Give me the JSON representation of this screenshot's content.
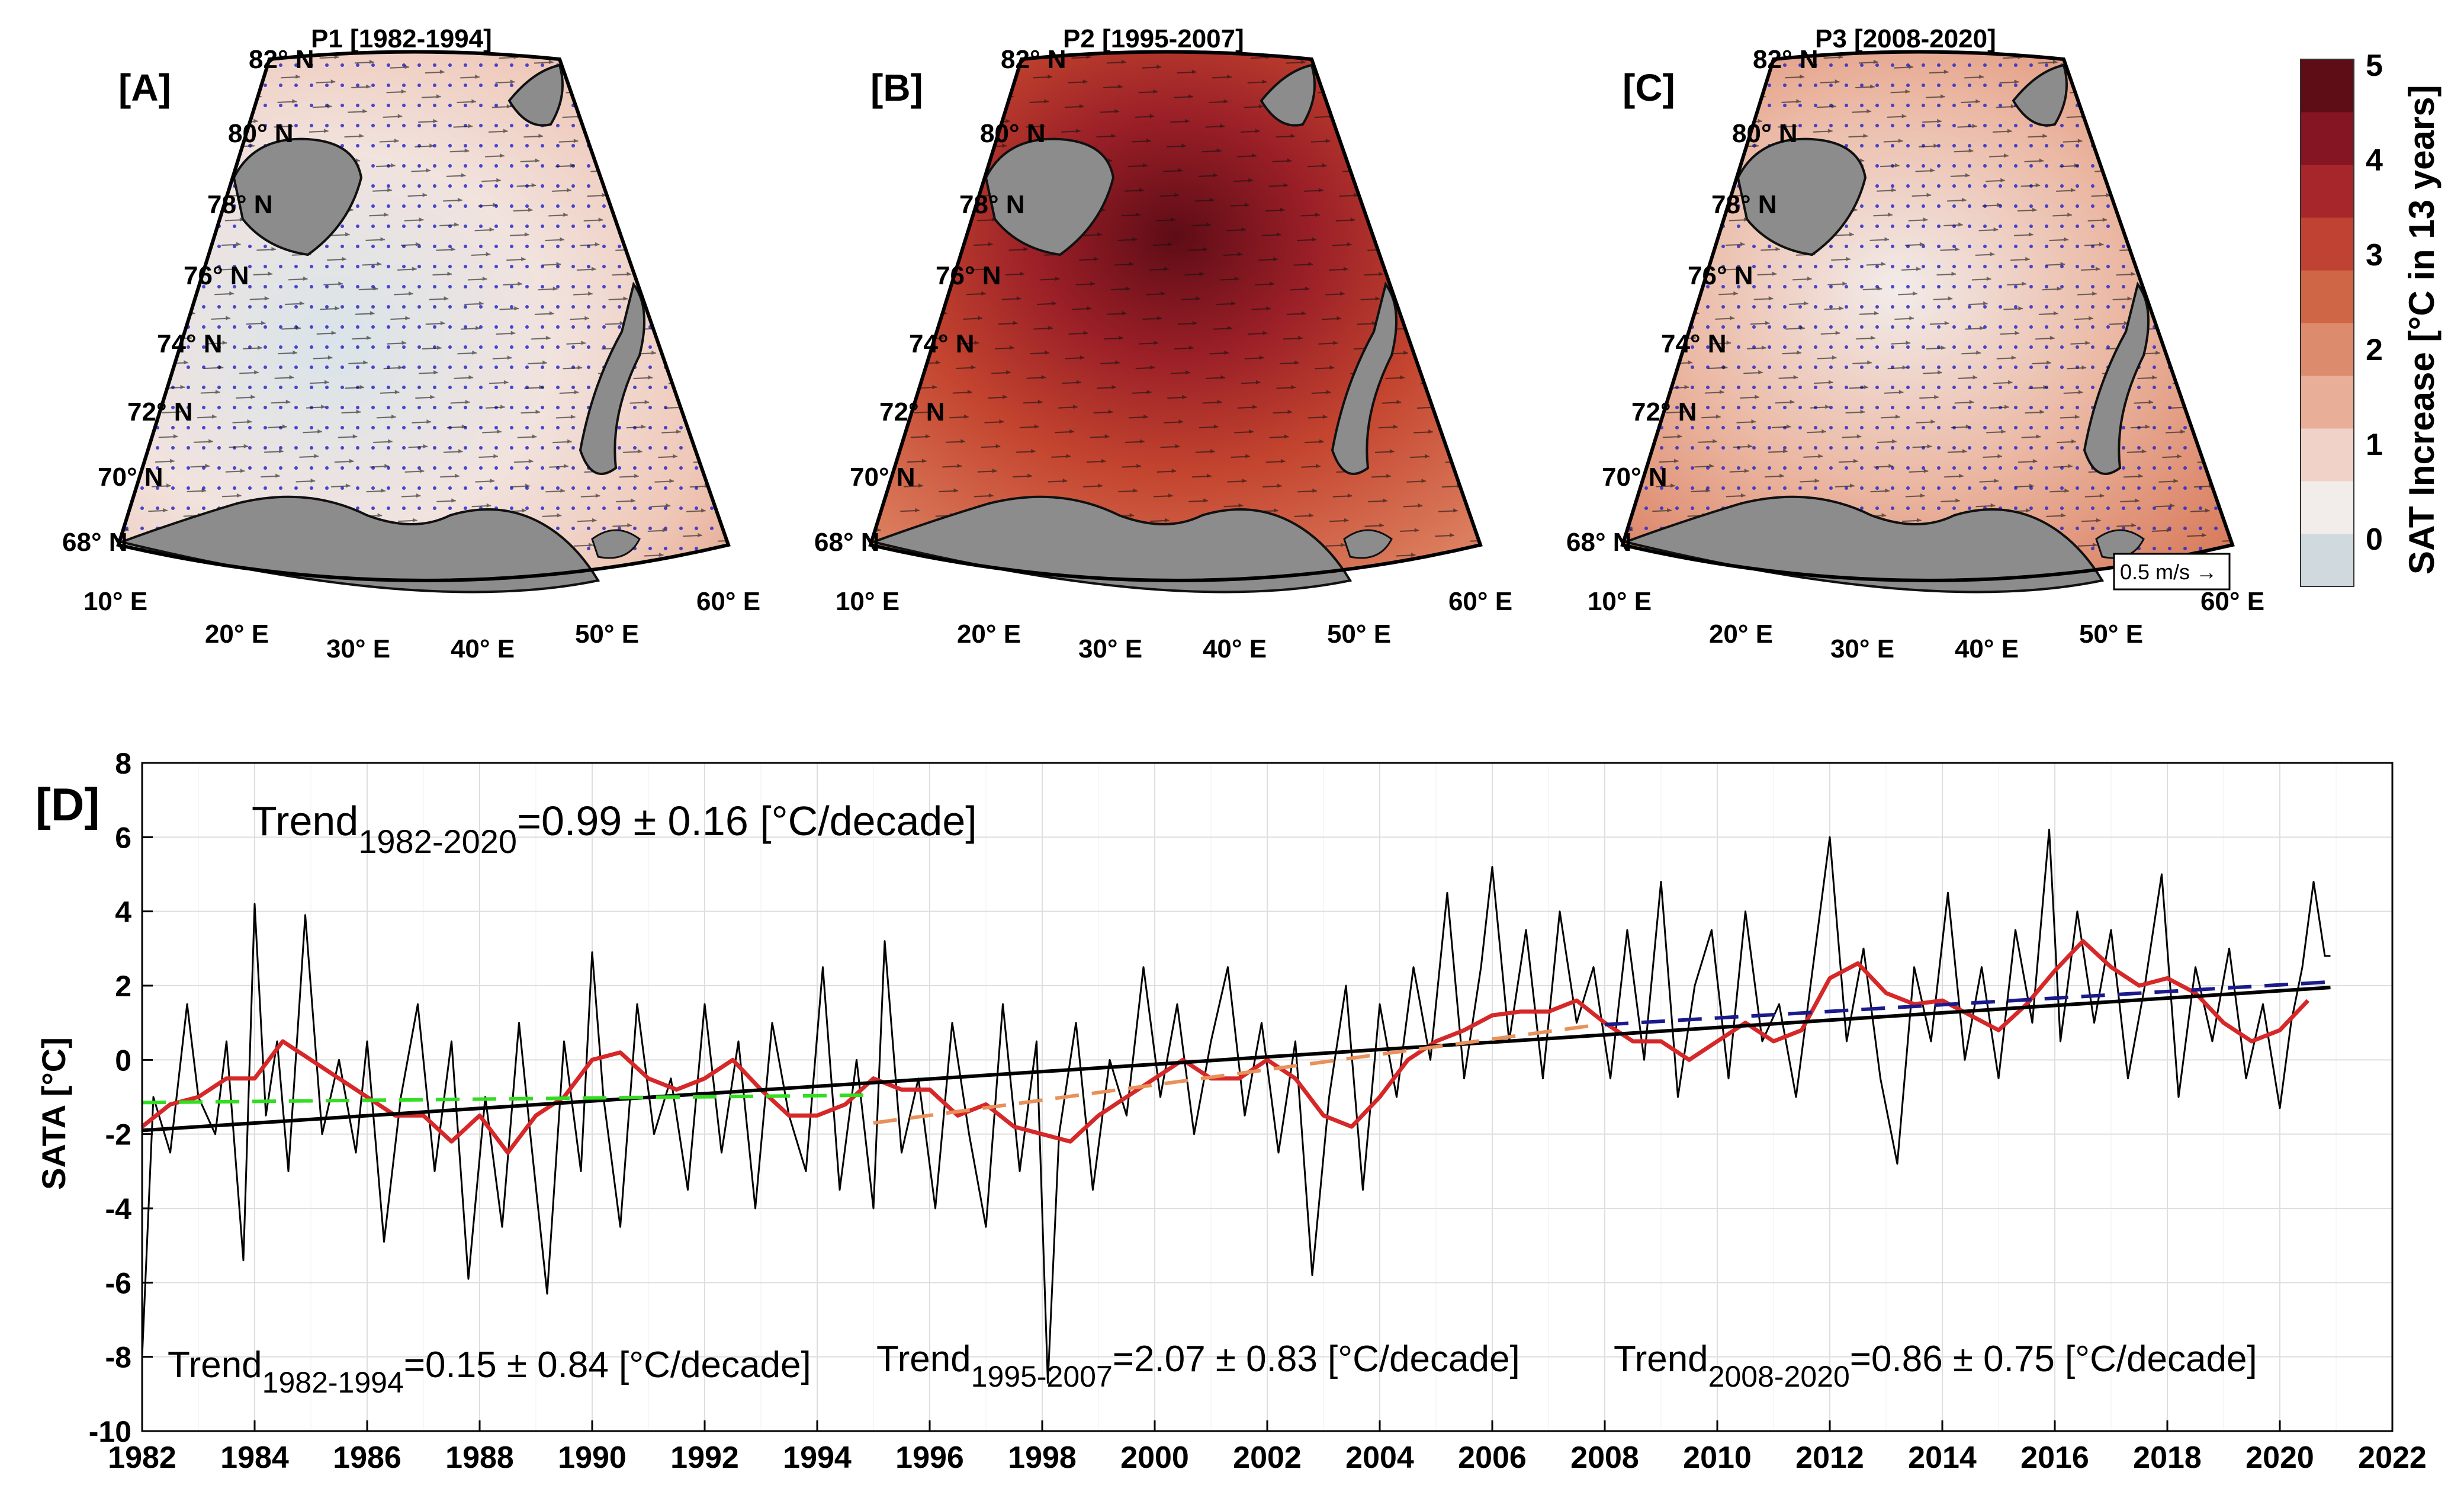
{
  "figure": {
    "panels_top": [
      {
        "tag": "[A]",
        "title": "P1 [1982-1994]",
        "scheme": "cool"
      },
      {
        "tag": "[B]",
        "title": "P2 [1995-2007]",
        "scheme": "hot"
      },
      {
        "tag": "[C]",
        "title": "P3 [2008-2020]",
        "scheme": "warm"
      }
    ],
    "lat_labels": [
      "68° N",
      "70° N",
      "72° N",
      "74° N",
      "76° N",
      "78° N",
      "80° N",
      "82° N"
    ],
    "lon_labels": [
      "10° E",
      "20° E",
      "30° E",
      "40° E",
      "50° E",
      "60° E"
    ],
    "scale_arrow_label": "0.5 m/s",
    "colorbar": {
      "label": "SAT Increase [°C in 13 years]",
      "ticks": [
        "0",
        "1",
        "2",
        "3",
        "4",
        "5"
      ],
      "colors": [
        "#cfd9de",
        "#f2ecea",
        "#f0d2c8",
        "#e8ae98",
        "#dd8b6d",
        "#cf6645",
        "#bf4232",
        "#a6262b",
        "#851522",
        "#5e0c16"
      ]
    },
    "panel_d_tag": "[D]",
    "trend_labels": [
      {
        "id": "overall",
        "main": "Trend",
        "sub": "1982-2020",
        "rest": "=0.99 ± 0.16 [°C/decade]",
        "color": "#000000"
      },
      {
        "id": "p1",
        "main": "Trend",
        "sub": "1982-1994",
        "rest": "=0.15 ± 0.84 [°C/decade]",
        "color": "#33dd22"
      },
      {
        "id": "p2",
        "main": "Trend",
        "sub": "1995-2007",
        "rest": "=2.07 ± 0.83 [°C/decade]",
        "color": "#e8915a"
      },
      {
        "id": "p3",
        "main": "Trend",
        "sub": "2008-2020",
        "rest": "=0.86 ± 0.75 [°C/decade]",
        "color": "#1a1a8c"
      }
    ]
  },
  "chart_data": {
    "type": "line",
    "title": "",
    "xlabel": "",
    "ylabel": "SATA [°C]",
    "xlim": [
      1982,
      2022
    ],
    "ylim": [
      -10,
      8
    ],
    "grid": true,
    "x_ticks": [
      1982,
      1984,
      1986,
      1988,
      1990,
      1992,
      1994,
      1996,
      1998,
      2000,
      2002,
      2004,
      2006,
      2008,
      2010,
      2012,
      2014,
      2016,
      2018,
      2020,
      2022
    ],
    "y_ticks": [
      -10,
      -8,
      -6,
      -4,
      -2,
      0,
      2,
      4,
      6,
      8
    ],
    "series": [
      {
        "name": "SATA monthly",
        "color": "#000000",
        "x": [
          1982.0,
          1982.2,
          1982.5,
          1982.8,
          1983.0,
          1983.3,
          1983.5,
          1983.8,
          1984.0,
          1984.2,
          1984.4,
          1984.6,
          1984.9,
          1985.2,
          1985.5,
          1985.8,
          1986.0,
          1986.3,
          1986.6,
          1986.9,
          1987.2,
          1987.5,
          1987.8,
          1988.1,
          1988.4,
          1988.7,
          1988.9,
          1989.2,
          1989.5,
          1989.8,
          1990.0,
          1990.2,
          1990.5,
          1990.8,
          1991.1,
          1991.4,
          1991.7,
          1992.0,
          1992.3,
          1992.6,
          1992.9,
          1993.2,
          1993.5,
          1993.8,
          1994.1,
          1994.4,
          1994.7,
          1995.0,
          1995.2,
          1995.5,
          1995.8,
          1996.1,
          1996.4,
          1996.7,
          1997.0,
          1997.3,
          1997.6,
          1997.9,
          1998.1,
          1998.3,
          1998.6,
          1998.9,
          1999.2,
          1999.5,
          1999.8,
          2000.1,
          2000.4,
          2000.7,
          2001.0,
          2001.3,
          2001.6,
          2001.9,
          2002.2,
          2002.5,
          2002.8,
          2003.1,
          2003.4,
          2003.7,
          2004.0,
          2004.3,
          2004.6,
          2004.9,
          2005.2,
          2005.5,
          2005.8,
          2006.0,
          2006.3,
          2006.6,
          2006.9,
          2007.2,
          2007.5,
          2007.8,
          2008.1,
          2008.4,
          2008.7,
          2009.0,
          2009.3,
          2009.6,
          2009.9,
          2010.2,
          2010.5,
          2010.8,
          2011.1,
          2011.4,
          2011.7,
          2012.0,
          2012.3,
          2012.6,
          2012.9,
          2013.2,
          2013.5,
          2013.8,
          2014.1,
          2014.4,
          2014.7,
          2015.0,
          2015.3,
          2015.6,
          2015.9,
          2016.1,
          2016.4,
          2016.7,
          2017.0,
          2017.3,
          2017.6,
          2017.9,
          2018.2,
          2018.5,
          2018.8,
          2019.1,
          2019.4,
          2019.7,
          2020.0,
          2020.2,
          2020.4,
          2020.6,
          2020.8,
          2020.9
        ],
        "y": [
          -8.0,
          -1.0,
          -2.5,
          1.5,
          -1.0,
          -2.0,
          0.5,
          -5.4,
          4.2,
          -1.5,
          0.5,
          -3.0,
          3.9,
          -2.0,
          0.0,
          -2.5,
          0.5,
          -4.9,
          -1.0,
          1.5,
          -3.0,
          0.5,
          -5.9,
          -1.0,
          -4.5,
          1.0,
          -2.0,
          -6.3,
          0.5,
          -3.0,
          2.9,
          -1.0,
          -4.5,
          1.5,
          -2.0,
          -0.5,
          -3.5,
          1.5,
          -2.5,
          0.5,
          -4.0,
          1.0,
          -1.5,
          -3.0,
          2.5,
          -3.5,
          0.0,
          -4.0,
          3.2,
          -2.5,
          -0.5,
          -4.0,
          1.0,
          -2.0,
          -4.5,
          1.5,
          -3.0,
          0.5,
          -8.7,
          -2.0,
          1.0,
          -3.5,
          0.0,
          -1.5,
          2.5,
          -1.0,
          1.5,
          -2.0,
          0.5,
          2.5,
          -1.5,
          1.0,
          -2.5,
          0.5,
          -5.8,
          -1.0,
          2.0,
          -3.5,
          1.5,
          -1.0,
          2.5,
          0.0,
          4.5,
          -0.5,
          2.5,
          5.2,
          0.5,
          3.5,
          -0.5,
          4.0,
          1.0,
          2.5,
          -0.5,
          3.5,
          0.0,
          4.8,
          -1.0,
          2.0,
          3.5,
          -0.5,
          4.0,
          0.5,
          1.5,
          -1.0,
          2.5,
          6.0,
          0.5,
          3.0,
          -0.5,
          -2.8,
          2.5,
          0.5,
          4.5,
          0.0,
          2.5,
          -0.5,
          3.5,
          1.0,
          6.2,
          0.5,
          4.0,
          1.0,
          3.5,
          -0.5,
          2.0,
          5.0,
          -1.0,
          2.5,
          0.5,
          3.0,
          -0.5,
          1.5,
          -1.3,
          1.0,
          2.5,
          4.8,
          2.8,
          2.8
        ]
      },
      {
        "name": "Running mean",
        "color": "#d62828",
        "x": [
          1982.0,
          1982.5,
          1983.0,
          1983.5,
          1984.0,
          1984.5,
          1985.0,
          1985.5,
          1986.0,
          1986.5,
          1987.0,
          1987.5,
          1988.0,
          1988.5,
          1989.0,
          1989.5,
          1990.0,
          1990.5,
          1991.0,
          1991.5,
          1992.0,
          1992.5,
          1993.0,
          1993.5,
          1994.0,
          1994.5,
          1995.0,
          1995.5,
          1996.0,
          1996.5,
          1997.0,
          1997.5,
          1998.0,
          1998.5,
          1999.0,
          1999.5,
          2000.0,
          2000.5,
          2001.0,
          2001.5,
          2002.0,
          2002.5,
          2003.0,
          2003.5,
          2004.0,
          2004.5,
          2005.0,
          2005.5,
          2006.0,
          2006.5,
          2007.0,
          2007.5,
          2008.0,
          2008.5,
          2009.0,
          2009.5,
          2010.0,
          2010.5,
          2011.0,
          2011.5,
          2012.0,
          2012.5,
          2013.0,
          2013.5,
          2014.0,
          2014.5,
          2015.0,
          2015.5,
          2016.0,
          2016.5,
          2017.0,
          2017.5,
          2018.0,
          2018.5,
          2019.0,
          2019.5,
          2020.0,
          2020.5
        ],
        "y": [
          -1.8,
          -1.2,
          -1.0,
          -0.5,
          -0.5,
          0.5,
          0.0,
          -0.5,
          -1.0,
          -1.5,
          -1.5,
          -2.2,
          -1.5,
          -2.5,
          -1.5,
          -1.0,
          0.0,
          0.2,
          -0.5,
          -0.8,
          -0.5,
          0.0,
          -0.8,
          -1.5,
          -1.5,
          -1.2,
          -0.5,
          -0.8,
          -0.8,
          -1.5,
          -1.2,
          -1.8,
          -2.0,
          -2.2,
          -1.5,
          -1.0,
          -0.5,
          0.0,
          -0.5,
          -0.5,
          0.0,
          -0.5,
          -1.5,
          -1.8,
          -1.0,
          0.0,
          0.5,
          0.8,
          1.2,
          1.3,
          1.3,
          1.6,
          1.0,
          0.5,
          0.5,
          0.0,
          0.5,
          1.0,
          0.5,
          0.8,
          2.2,
          2.6,
          1.8,
          1.5,
          1.6,
          1.2,
          0.8,
          1.5,
          2.4,
          3.2,
          2.5,
          2.0,
          2.2,
          1.8,
          1.0,
          0.5,
          0.8,
          1.6
        ]
      },
      {
        "name": "Trend 1982-2020",
        "color": "#000000",
        "x": [
          1982,
          2020.9
        ],
        "y": [
          -1.9,
          1.95
        ]
      },
      {
        "name": "Trend 1982-1994",
        "color": "#33dd22",
        "dashed": true,
        "x": [
          1982,
          1994.9
        ],
        "y": [
          -1.15,
          -0.95
        ]
      },
      {
        "name": "Trend 1995-2007",
        "color": "#e8915a",
        "dashed": true,
        "x": [
          1995,
          2007.9
        ],
        "y": [
          -1.7,
          0.95
        ]
      },
      {
        "name": "Trend 2008-2020",
        "color": "#1a1a8c",
        "dashed": true,
        "x": [
          2008,
          2020.9
        ],
        "y": [
          0.95,
          2.1
        ]
      }
    ]
  }
}
